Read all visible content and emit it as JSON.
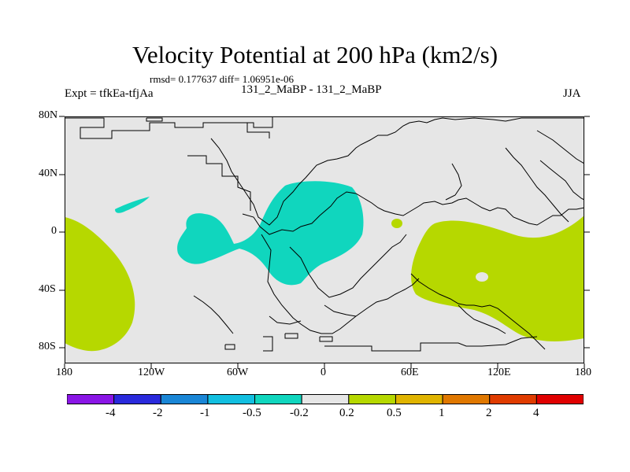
{
  "title": "Velocity Potential at 200 hPa (km2/s)",
  "stats": "rmsd= 0.177637 diff= 1.06951e-06",
  "left_label": "Expt = tfkEa-tfjAa",
  "center_label": "131_2_MaBP - 131_2_MaBP",
  "right_label": "JJA",
  "lat_ticks": [
    "80N",
    "40N",
    "0",
    "40S",
    "80S"
  ],
  "lon_ticks": [
    "180",
    "120W",
    "60W",
    "0",
    "60E",
    "120E",
    "180"
  ],
  "colorbar": {
    "colors": [
      "#8a16e6",
      "#2a2adc",
      "#1a86d6",
      "#12bfe0",
      "#10d6be",
      "#e6e6e6",
      "#b6d800",
      "#e0b400",
      "#e07800",
      "#e03c00",
      "#e00000"
    ],
    "labels": [
      "-4",
      "-2",
      "-1",
      "-0.5",
      "-0.2",
      "0.2",
      "0.5",
      "1",
      "2",
      "4"
    ]
  },
  "colors": {
    "background": "#e6e6e6",
    "negative_fill": "#10d6be",
    "positive_fill": "#b6d800"
  }
}
